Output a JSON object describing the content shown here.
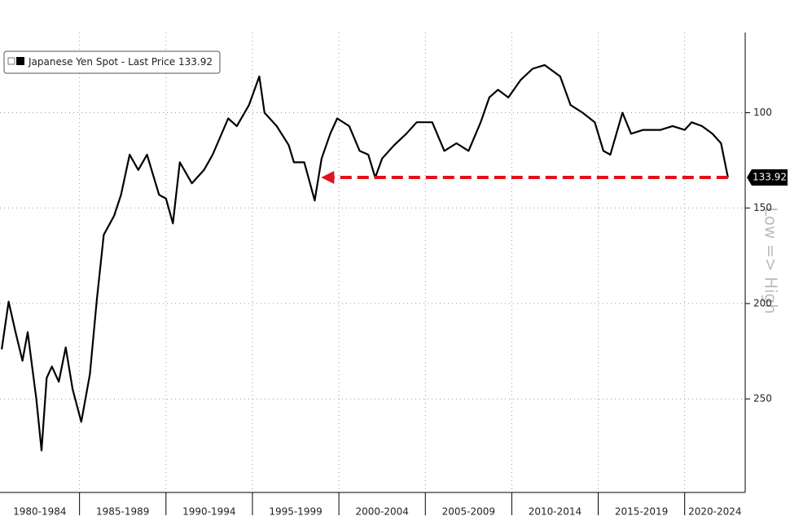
{
  "chart_data": {
    "type": "line",
    "y_label": "Low => High",
    "x": [
      1980.5,
      1980.9,
      1981.3,
      1981.7,
      1982.0,
      1982.5,
      1982.8,
      1983.1,
      1983.4,
      1983.8,
      1984.2,
      1984.6,
      1985.1,
      1985.6,
      1986.0,
      1986.4,
      1987.0,
      1987.4,
      1987.9,
      1988.4,
      1988.9,
      1989.6,
      1990.0,
      1990.4,
      1990.8,
      1991.5,
      1992.2,
      1992.7,
      1993.6,
      1994.1,
      1994.8,
      1995.4,
      1995.7,
      1996.4,
      1997.1,
      1997.4,
      1998.0,
      1998.6,
      1999.0,
      1999.5,
      1999.9,
      2000.6,
      2001.2,
      2001.7,
      2002.1,
      2002.5,
      2003.2,
      2003.9,
      2004.5,
      2005.4,
      2006.1,
      2006.8,
      2007.5,
      2008.2,
      2008.7,
      2009.2,
      2009.8,
      2010.5,
      2011.2,
      2011.9,
      2012.8,
      2013.4,
      2014.1,
      2014.8,
      2015.3,
      2015.7,
      2016.4,
      2016.9,
      2017.6,
      2018.6,
      2019.3,
      2020.0,
      2020.4,
      2021.0,
      2021.6,
      2022.1,
      2022.5
    ],
    "series": [
      {
        "name": "Japanese Yen Spot - Last Price",
        "color": "#000000",
        "values": [
          224,
          199,
          215,
          230,
          215,
          250,
          277,
          239,
          233,
          241,
          223,
          245,
          262,
          237,
          198,
          164,
          154,
          143,
          122,
          130,
          122,
          143,
          145,
          158,
          126,
          137,
          130,
          122,
          103,
          107,
          96,
          81,
          100,
          107,
          117,
          126,
          126,
          146,
          124,
          111,
          103,
          107,
          120,
          122,
          134,
          124,
          117,
          111,
          105,
          105,
          120,
          116,
          120,
          105,
          92,
          88,
          92,
          83,
          77,
          75,
          81,
          96,
          100,
          105,
          120,
          122,
          100,
          111,
          109,
          109,
          107,
          109,
          105,
          107,
          111,
          116,
          133.92
        ]
      }
    ],
    "xlim": [
      1980.4,
      2023.5
    ],
    "xticks": [
      1985,
      1990,
      1995,
      2000,
      2005,
      2010,
      2015,
      2020
    ],
    "x_band_labels": [
      "1980-1984",
      "1985-1989",
      "1990-1994",
      "1995-1999",
      "2000-2004",
      "2005-2009",
      "2010-2014",
      "2015-2019",
      "2020-2024"
    ],
    "ylim": [
      58,
      299
    ],
    "y_inverted": true,
    "yticks": [
      100,
      150,
      200,
      250
    ],
    "grid": true,
    "annotation": {
      "type": "arrow",
      "x_start": 1999.2,
      "color": "#e3101b"
    }
  }
}
